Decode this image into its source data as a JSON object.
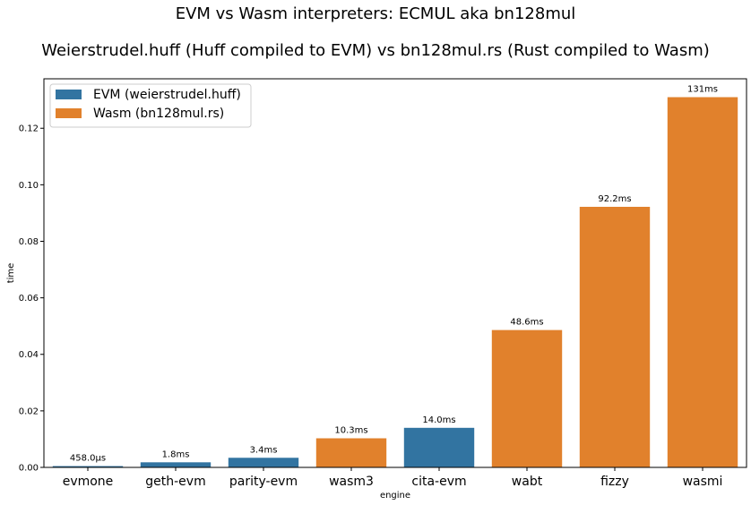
{
  "chart_data": {
    "type": "bar",
    "title": "EVM vs Wasm interpreters: ECMUL aka bn128mul",
    "subtitle": "Weierstrudel.huff (Huff compiled to EVM) vs bn128mul.rs (Rust compiled to Wasm)",
    "xlabel": "engine",
    "ylabel": "time",
    "ylim": [
      0,
      0.1375
    ],
    "yticks": [
      "0.00",
      "0.02",
      "0.04",
      "0.06",
      "0.08",
      "0.10",
      "0.12"
    ],
    "categories": [
      "evmone",
      "geth-evm",
      "parity-evm",
      "wasm3",
      "cita-evm",
      "wabt",
      "fizzy",
      "wasmi"
    ],
    "values": [
      0.000458,
      0.0018,
      0.0034,
      0.0103,
      0.014,
      0.0486,
      0.0922,
      0.131
    ],
    "data_labels": [
      "458.0µs",
      "1.8ms",
      "3.4ms",
      "10.3ms",
      "14.0ms",
      "48.6ms",
      "92.2ms",
      "131ms"
    ],
    "groups": [
      "evm",
      "evm",
      "evm",
      "wasm",
      "evm",
      "wasm",
      "wasm",
      "wasm"
    ],
    "legend": {
      "placement": "top-left",
      "entries": [
        {
          "key": "evm",
          "label": "EVM (weierstrudel.huff)",
          "color": "#3274a1"
        },
        {
          "key": "wasm",
          "label": "Wasm (bn128mul.rs)",
          "color": "#e1812c"
        }
      ]
    },
    "grid": false
  }
}
